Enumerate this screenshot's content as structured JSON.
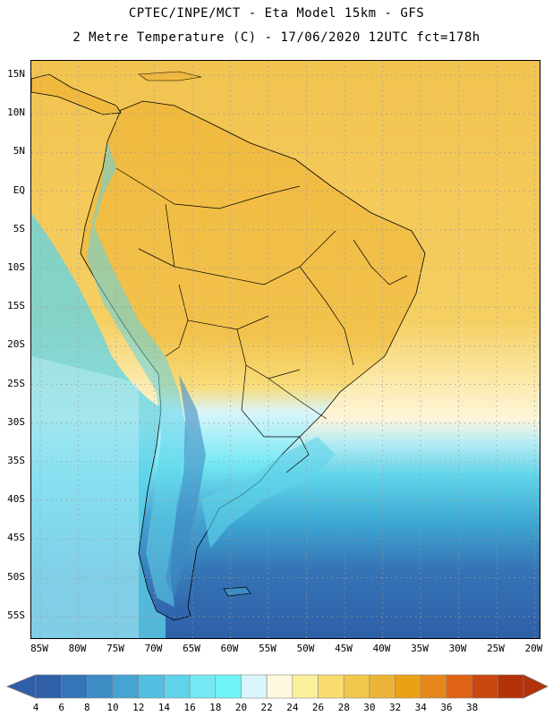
{
  "header": {
    "line1": "CPTEC/INPE/MCT -  Eta Model 15km - GFS",
    "line2": "2 Metre Temperature (C) - 17/06/2020 12UTC fct=178h"
  },
  "axes": {
    "lat_labels": [
      "15N",
      "10N",
      "5N",
      "EQ",
      "5S",
      "10S",
      "15S",
      "20S",
      "25S",
      "30S",
      "35S",
      "40S",
      "45S",
      "50S",
      "55S"
    ],
    "lon_labels": [
      "85W",
      "80W",
      "75W",
      "70W",
      "65W",
      "60W",
      "55W",
      "50W",
      "45W",
      "40W",
      "35W",
      "30W",
      "25W",
      "20W"
    ]
  },
  "colorbar": {
    "values": [
      "4",
      "6",
      "8",
      "10",
      "12",
      "14",
      "16",
      "18",
      "20",
      "22",
      "24",
      "26",
      "28",
      "30",
      "32",
      "34",
      "36",
      "38"
    ],
    "colors": [
      "#2e5fa8",
      "#3574b6",
      "#3d8cc4",
      "#46a4d2",
      "#52bfe0",
      "#5fd4ea",
      "#74e8f3",
      "#6ff5f7",
      "#d8f5fb",
      "#fdf8de",
      "#fbef9b",
      "#f8dd6e",
      "#f2c84c",
      "#ecb436",
      "#eaa115",
      "#e8861e",
      "#de6315",
      "#c9480f",
      "#b33209"
    ],
    "low_arrow_color": "#2e5fa8",
    "high_arrow_color": "#b33209"
  },
  "map": {
    "ocean_north_color": "#f3c552",
    "ocean_mid_color": "#fef6d9",
    "ocean_south_color": "#2e5fa8",
    "land_color": "#f0b93e"
  }
}
